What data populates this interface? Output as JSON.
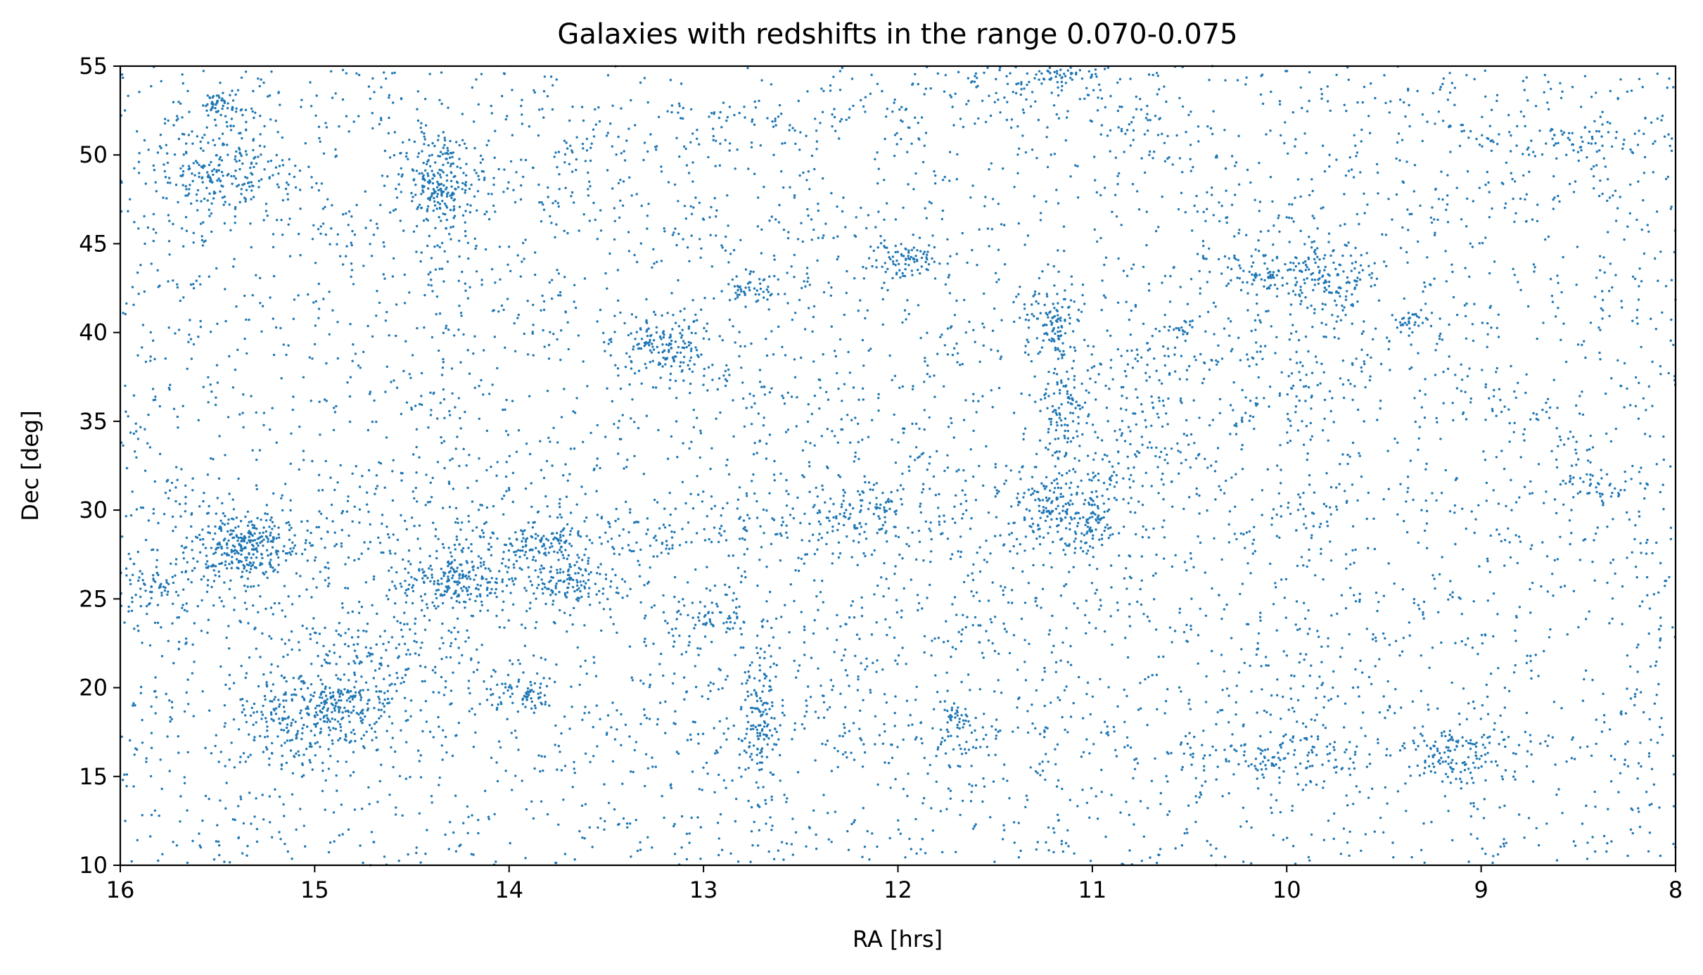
{
  "chart_data": {
    "type": "scatter",
    "title": "Galaxies with redshifts in the range 0.070-0.075",
    "xlabel": "RA [hrs]",
    "ylabel": "Dec [deg]",
    "xlim": [
      16,
      8
    ],
    "ylim": [
      10,
      55
    ],
    "x_inverted": true,
    "x_ticks": [
      "16",
      "15",
      "14",
      "13",
      "12",
      "11",
      "10",
      "9",
      "8"
    ],
    "y_ticks": [
      "10",
      "15",
      "20",
      "25",
      "30",
      "35",
      "40",
      "45",
      "50",
      "55"
    ],
    "grid": false,
    "point_color": "#1f77b4",
    "series": [
      {
        "values_description_note": "",
        "clusters": [
          {
            "x": 15.37,
            "y": 28.0,
            "sx": 0.13,
            "sy": 0.9,
            "n": 260
          },
          {
            "x": 14.35,
            "y": 48.5,
            "sx": 0.09,
            "sy": 1.4,
            "n": 190
          },
          {
            "x": 13.2,
            "y": 39.3,
            "sx": 0.11,
            "sy": 0.9,
            "n": 130
          },
          {
            "x": 12.7,
            "y": 17.6,
            "sx": 0.05,
            "sy": 2.2,
            "n": 140
          },
          {
            "x": 11.2,
            "y": 40.4,
            "sx": 0.06,
            "sy": 1.0,
            "n": 90
          },
          {
            "x": 11.15,
            "y": 35.5,
            "sx": 0.07,
            "sy": 1.3,
            "n": 80
          },
          {
            "x": 11.2,
            "y": 30.5,
            "sx": 0.12,
            "sy": 1.1,
            "n": 110
          },
          {
            "x": 11.0,
            "y": 29.0,
            "sx": 0.06,
            "sy": 1.0,
            "n": 60
          },
          {
            "x": 9.8,
            "y": 43.2,
            "sx": 0.1,
            "sy": 0.9,
            "n": 110
          },
          {
            "x": 10.15,
            "y": 43.1,
            "sx": 0.09,
            "sy": 0.6,
            "n": 60
          },
          {
            "x": 11.95,
            "y": 44.1,
            "sx": 0.1,
            "sy": 0.5,
            "n": 70
          },
          {
            "x": 12.75,
            "y": 42.3,
            "sx": 0.1,
            "sy": 0.5,
            "n": 50
          },
          {
            "x": 13.85,
            "y": 28.0,
            "sx": 0.12,
            "sy": 0.5,
            "n": 80
          },
          {
            "x": 14.3,
            "y": 26.2,
            "sx": 0.12,
            "sy": 0.7,
            "n": 80
          },
          {
            "x": 13.65,
            "y": 25.8,
            "sx": 0.12,
            "sy": 0.6,
            "n": 60
          },
          {
            "x": 13.92,
            "y": 19.8,
            "sx": 0.06,
            "sy": 0.6,
            "n": 50
          },
          {
            "x": 15.5,
            "y": 48.7,
            "sx": 0.2,
            "sy": 1.0,
            "n": 90
          },
          {
            "x": 15.5,
            "y": 52.9,
            "sx": 0.05,
            "sy": 0.3,
            "n": 40
          },
          {
            "x": 15.15,
            "y": 18.0,
            "sx": 0.15,
            "sy": 1.6,
            "n": 120
          },
          {
            "x": 14.85,
            "y": 19.0,
            "sx": 0.18,
            "sy": 1.4,
            "n": 90
          },
          {
            "x": 9.1,
            "y": 16.2,
            "sx": 0.15,
            "sy": 0.9,
            "n": 120
          },
          {
            "x": 10.1,
            "y": 16.0,
            "sx": 0.2,
            "sy": 1.1,
            "n": 110
          },
          {
            "x": 11.2,
            "y": 54.6,
            "sx": 0.2,
            "sy": 0.4,
            "n": 60
          },
          {
            "x": 8.5,
            "y": 50.8,
            "sx": 0.2,
            "sy": 0.6,
            "n": 60
          },
          {
            "x": 12.95,
            "y": 24.0,
            "sx": 0.15,
            "sy": 0.7,
            "n": 70
          },
          {
            "x": 15.85,
            "y": 25.7,
            "sx": 0.08,
            "sy": 0.6,
            "n": 40
          },
          {
            "x": 8.4,
            "y": 31.3,
            "sx": 0.12,
            "sy": 0.4,
            "n": 40
          },
          {
            "x": 11.7,
            "y": 17.8,
            "sx": 0.06,
            "sy": 0.8,
            "n": 40
          },
          {
            "x": 12.1,
            "y": 30.0,
            "sx": 0.12,
            "sy": 0.8,
            "n": 50
          },
          {
            "x": 9.35,
            "y": 40.7,
            "sx": 0.04,
            "sy": 0.3,
            "n": 20
          },
          {
            "x": 10.55,
            "y": 40.2,
            "sx": 0.04,
            "sy": 0.2,
            "n": 10
          }
        ],
        "background_points": 7200
      }
    ]
  }
}
